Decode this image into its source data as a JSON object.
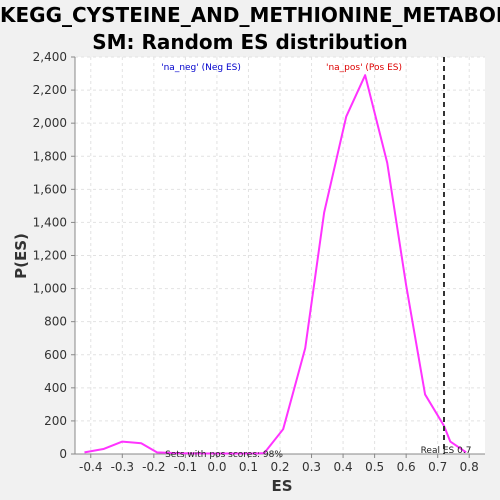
{
  "window": {
    "title_line1": "KEGG_CYSTEINE_AND_METHIONINE_METABOLI",
    "title_line2": "SM: Random ES distribution"
  },
  "chart_data": {
    "type": "line",
    "title": "KEGG_CYSTEINE_AND_METHIONINE_METABOLISM: Random ES distribution",
    "xlabel": "ES",
    "ylabel": "P(ES)",
    "xlim": [
      -0.45,
      0.85
    ],
    "ylim": [
      0,
      2400
    ],
    "x_ticks": [
      -0.4,
      -0.3,
      -0.2,
      -0.1,
      0.0,
      0.1,
      0.2,
      0.3,
      0.4,
      0.5,
      0.6,
      0.7,
      0.8
    ],
    "x_tick_labels": [
      "-0.4",
      "-0.3",
      "-0.2",
      "-0.1",
      "0.0",
      "0.1",
      "0.2",
      "0.3",
      "0.4",
      "0.5",
      "0.6",
      "0.7",
      "0.8"
    ],
    "y_ticks": [
      0,
      200,
      400,
      600,
      800,
      1000,
      1200,
      1400,
      1600,
      1800,
      2000,
      2200,
      2400
    ],
    "y_tick_labels": [
      "0",
      "200",
      "400",
      "600",
      "800",
      "1,000",
      "1,200",
      "1,400",
      "1,600",
      "1,800",
      "2,000",
      "2,200",
      "2,400"
    ],
    "grid": true,
    "series": [
      {
        "color": "#ff33ff",
        "x": [
          -0.42,
          -0.36,
          -0.3,
          -0.24,
          -0.19,
          -0.13,
          -0.07,
          0.0,
          0.06,
          0.12,
          0.15,
          0.21,
          0.28,
          0.34,
          0.41,
          0.47,
          0.54,
          0.6,
          0.66,
          0.72,
          0.74,
          0.79
        ],
        "y": [
          10,
          30,
          75,
          65,
          10,
          5,
          3,
          3,
          3,
          3,
          5,
          150,
          640,
          1460,
          2040,
          2290,
          1760,
          1020,
          360,
          170,
          75,
          10
        ]
      }
    ],
    "reference_line": {
      "x": 0.72,
      "label": "Real ES 0.7",
      "style": "dashed",
      "color": "#333333"
    },
    "annotations": {
      "neg_label": "'na_neg' (Neg ES)",
      "neg_color": "#0000cc",
      "pos_label": "'na_pos' (Pos ES)",
      "pos_color": "#dd0000",
      "bottom_text": "Sets with pos scores: 98%"
    }
  }
}
